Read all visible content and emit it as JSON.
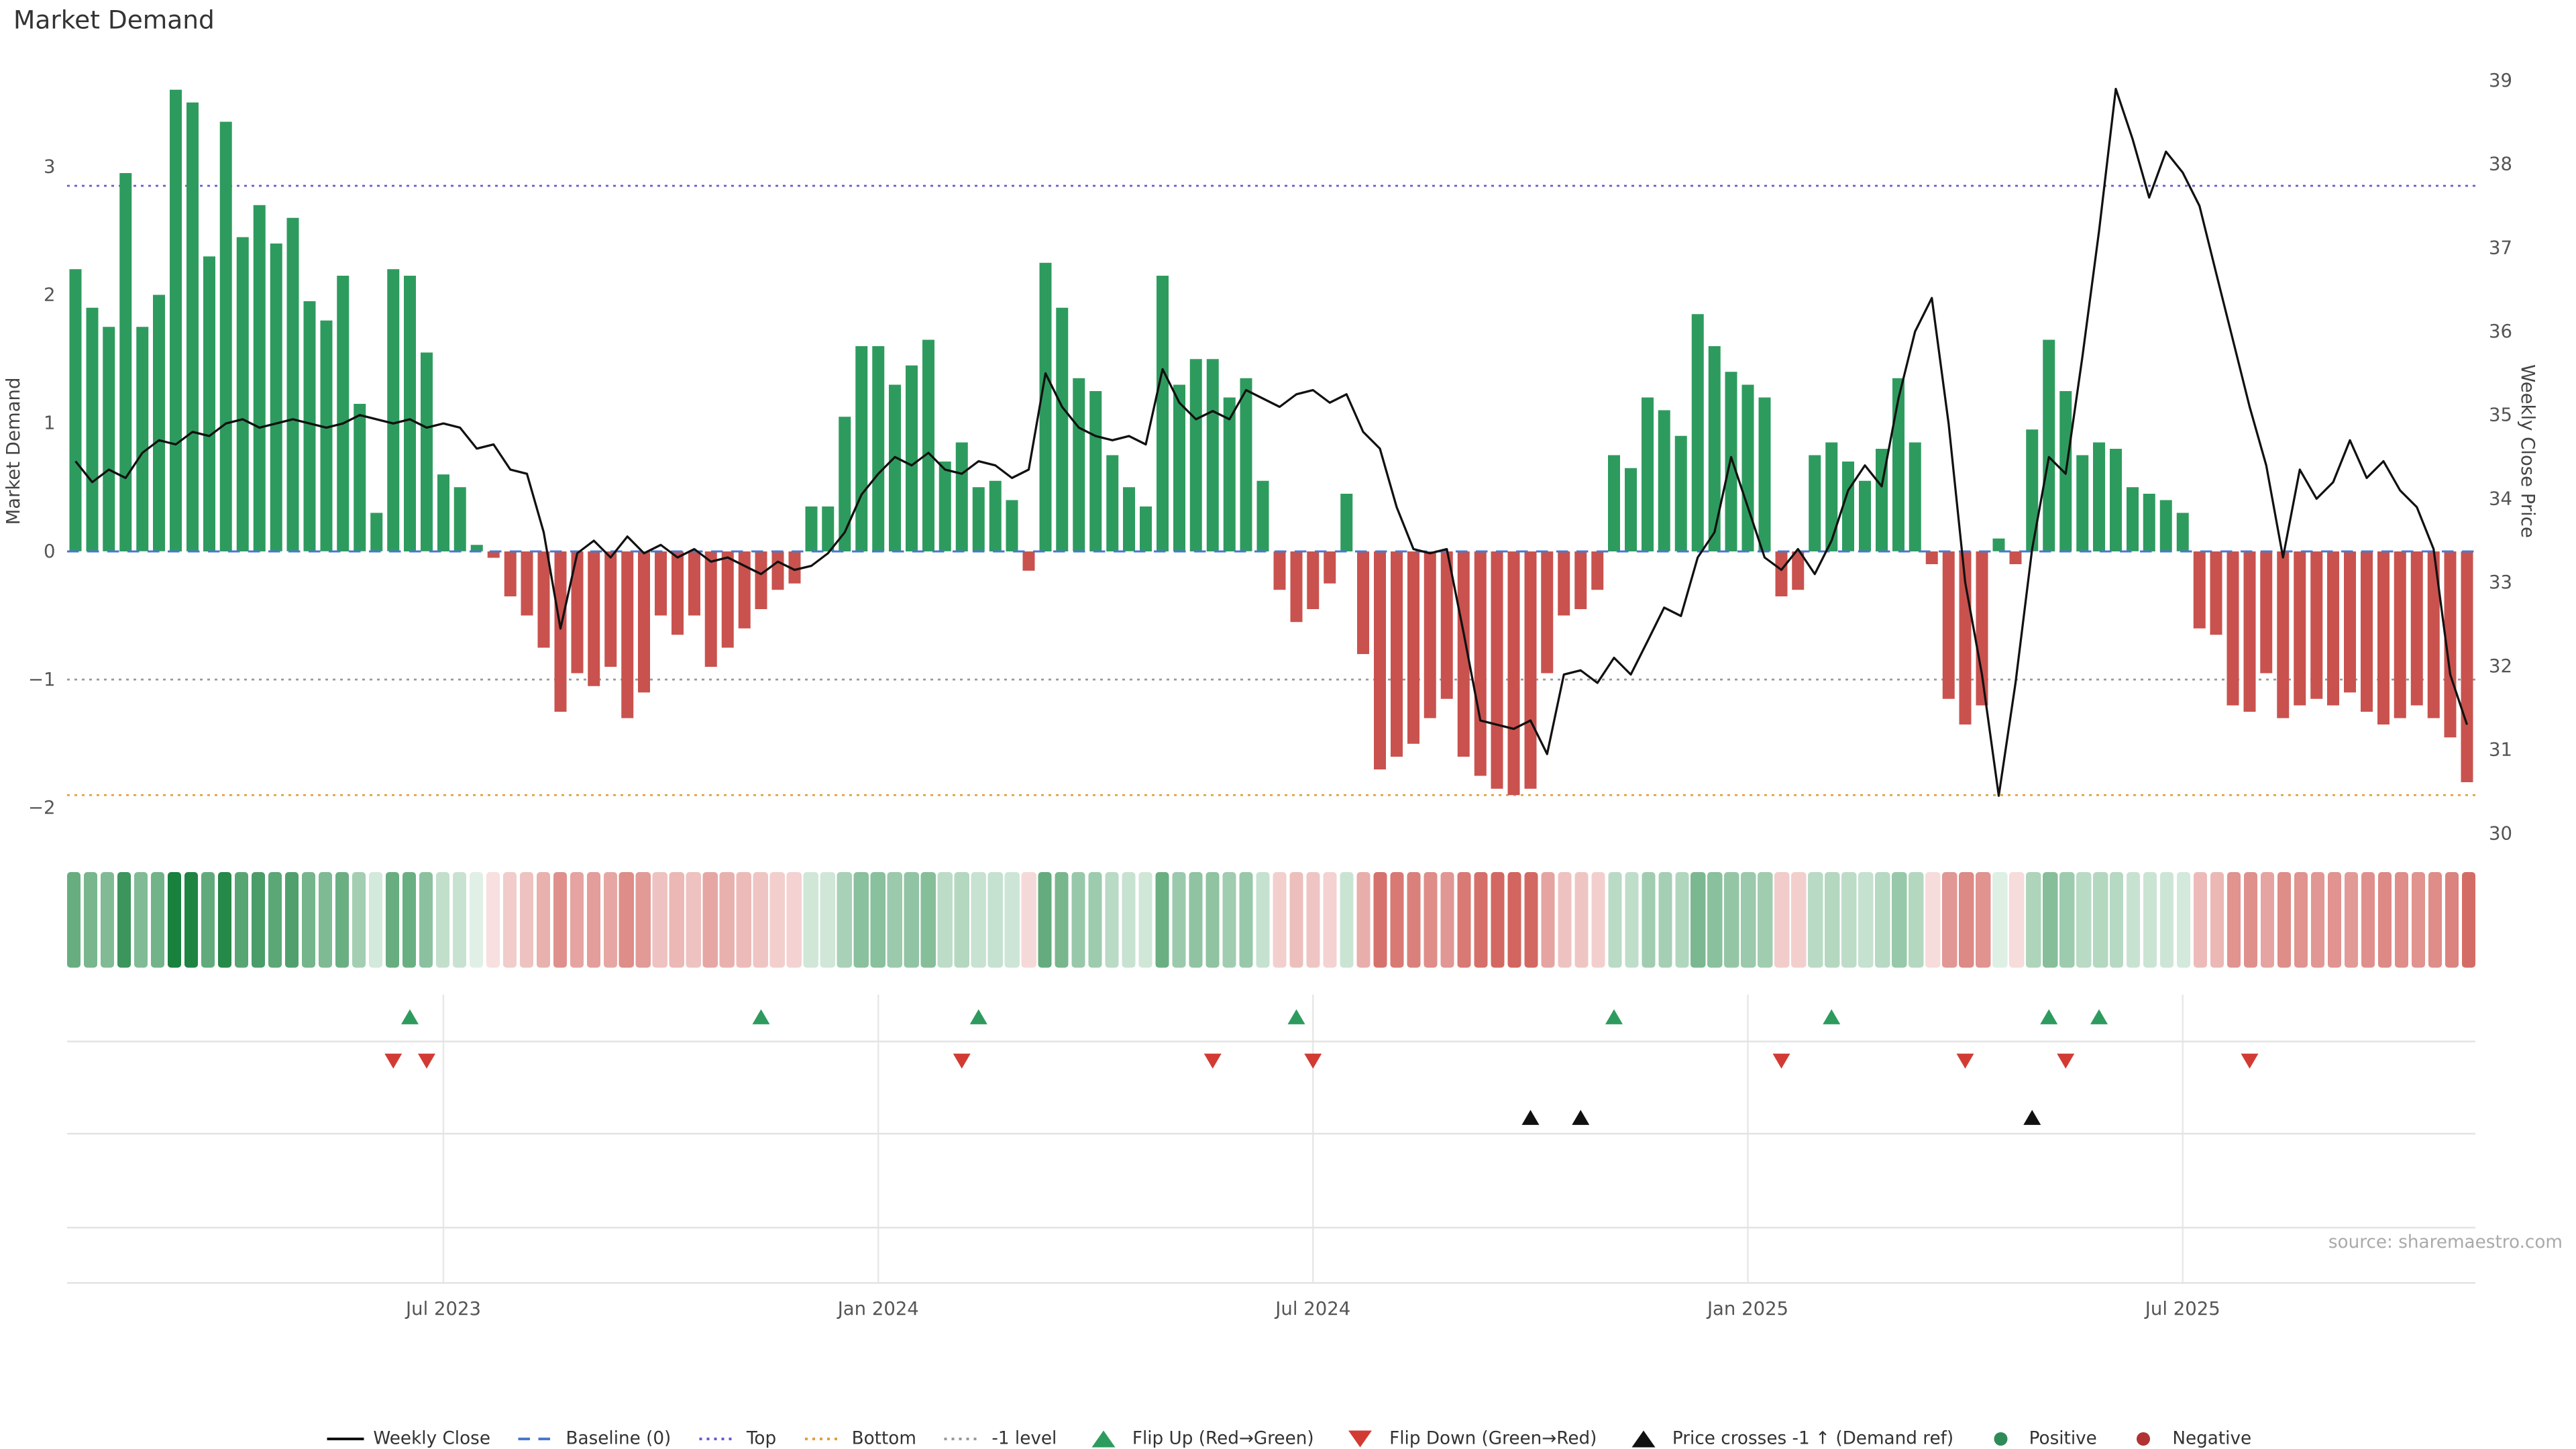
{
  "page": {
    "title": "Market Demand",
    "source_note": "source: sharemaestro.com"
  },
  "axes": {
    "left_label": "Market Demand",
    "right_label": "Weekly Close Price",
    "left_ticks": [
      "3",
      "2",
      "1",
      "0",
      "−1",
      "−2"
    ],
    "right_ticks": [
      "39",
      "38",
      "37",
      "36",
      "35",
      "34",
      "33",
      "32",
      "31",
      "30"
    ],
    "x_ticks": [
      {
        "index": 22,
        "label": "Jul 2023"
      },
      {
        "index": 48,
        "label": "Jan 2024"
      },
      {
        "index": 74,
        "label": "Jul 2024"
      },
      {
        "index": 100,
        "label": "Jan 2025"
      },
      {
        "index": 126,
        "label": "Jul 2025"
      }
    ]
  },
  "chart_data": {
    "type": "bar+line",
    "title": "Market Demand",
    "left_ylim": [
      -2.2,
      3.75
    ],
    "right_ylim": [
      30,
      39.12
    ],
    "reference_lines": [
      {
        "name": "baseline",
        "label": "Baseline (0)",
        "value": 0,
        "color": "#4878cf",
        "style": "dashed"
      },
      {
        "name": "top",
        "label": "Top",
        "value": 2.85,
        "color": "#6a5acd",
        "style": "dotted"
      },
      {
        "name": "bottom",
        "label": "Bottom",
        "value": -1.9,
        "color": "#e0a03c",
        "style": "dotted"
      },
      {
        "name": "minus-one",
        "label": "-1 level",
        "value": -1,
        "color": "#999999",
        "style": "dotted"
      }
    ],
    "series": [
      {
        "name": "Market Demand",
        "type": "bar",
        "axis": "left",
        "values": [
          2.2,
          1.9,
          1.75,
          2.95,
          1.75,
          2.0,
          3.6,
          3.5,
          2.3,
          3.35,
          2.45,
          2.7,
          2.4,
          2.6,
          1.95,
          1.8,
          2.15,
          1.15,
          0.3,
          2.2,
          2.15,
          1.55,
          0.6,
          0.5,
          0.05,
          -0.05,
          -0.35,
          -0.5,
          -0.75,
          -1.25,
          -0.95,
          -1.05,
          -0.9,
          -1.3,
          -1.1,
          -0.5,
          -0.65,
          -0.5,
          -0.9,
          -0.75,
          -0.6,
          -0.45,
          -0.3,
          -0.25,
          0.35,
          0.35,
          1.05,
          1.6,
          1.6,
          1.3,
          1.45,
          1.65,
          0.7,
          0.85,
          0.5,
          0.55,
          0.4,
          -0.15,
          2.25,
          1.9,
          1.35,
          1.25,
          0.75,
          0.5,
          0.35,
          2.15,
          1.3,
          1.5,
          1.5,
          1.2,
          1.35,
          0.55,
          -0.3,
          -0.55,
          -0.45,
          -0.25,
          0.45,
          -0.8,
          -1.7,
          -1.6,
          -1.5,
          -1.3,
          -1.15,
          -1.6,
          -1.75,
          -1.85,
          -1.9,
          -1.85,
          -0.95,
          -0.5,
          -0.45,
          -0.3,
          0.75,
          0.65,
          1.2,
          1.1,
          0.9,
          1.85,
          1.6,
          1.4,
          1.3,
          1.2,
          -0.35,
          -0.3,
          0.75,
          0.85,
          0.7,
          0.55,
          0.8,
          1.35,
          0.85,
          -0.1,
          -1.15,
          -1.35,
          -1.2,
          0.1,
          -0.1,
          0.95,
          1.65,
          1.25,
          0.75,
          0.85,
          0.8,
          0.5,
          0.45,
          0.4,
          0.3,
          -0.6,
          -0.65,
          -1.2,
          -1.25,
          -0.95,
          -1.3,
          -1.2,
          -1.15,
          -1.2,
          -1.1,
          -1.25,
          -1.35,
          -1.3,
          -1.2,
          -1.3,
          -1.45,
          -1.8
        ]
      },
      {
        "name": "Weekly Close",
        "type": "line",
        "axis": "right",
        "values": [
          34.45,
          34.2,
          34.35,
          34.25,
          34.55,
          34.7,
          34.65,
          34.8,
          34.75,
          34.9,
          34.95,
          34.85,
          34.9,
          34.95,
          34.9,
          34.85,
          34.9,
          35.0,
          34.95,
          34.9,
          34.95,
          34.85,
          34.9,
          34.85,
          34.6,
          34.65,
          34.35,
          34.3,
          33.6,
          32.45,
          33.35,
          33.5,
          33.3,
          33.55,
          33.35,
          33.45,
          33.3,
          33.4,
          33.25,
          33.3,
          33.2,
          33.1,
          33.25,
          33.15,
          33.2,
          33.35,
          33.6,
          34.05,
          34.3,
          34.5,
          34.4,
          34.55,
          34.35,
          34.3,
          34.45,
          34.4,
          34.25,
          34.35,
          35.5,
          35.1,
          34.85,
          34.75,
          34.7,
          34.75,
          34.65,
          35.55,
          35.15,
          34.95,
          35.05,
          34.95,
          35.3,
          35.2,
          35.1,
          35.25,
          35.3,
          35.15,
          35.25,
          34.8,
          34.6,
          33.9,
          33.4,
          33.35,
          33.4,
          32.4,
          31.35,
          31.3,
          31.25,
          31.35,
          30.95,
          31.9,
          31.95,
          31.8,
          32.1,
          31.9,
          32.3,
          32.7,
          32.6,
          33.3,
          33.6,
          34.5,
          33.9,
          33.3,
          33.15,
          33.4,
          33.1,
          33.5,
          34.1,
          34.4,
          34.15,
          35.2,
          36.0,
          36.4,
          34.9,
          33.0,
          31.9,
          30.45,
          31.8,
          33.4,
          34.5,
          34.3,
          35.7,
          37.2,
          38.9,
          38.3,
          37.6,
          38.15,
          37.9,
          37.5,
          36.7,
          35.9,
          35.1,
          34.4,
          33.3,
          34.35,
          34.0,
          34.2,
          34.7,
          34.25,
          34.45,
          34.1,
          33.9,
          33.4,
          31.9,
          31.3
        ]
      }
    ],
    "flip_up_indices": [
      20,
      41,
      54,
      73,
      92,
      105,
      118,
      121
    ],
    "flip_down_indices": [
      19,
      21,
      53,
      68,
      74,
      102,
      113,
      119,
      130
    ],
    "price_cross_indices": [
      87,
      90,
      117
    ]
  },
  "heatmap": {
    "description": "Weekly demand heat strip derived from Market Demand bar values (green = positive, red = negative)"
  },
  "colors": {
    "positive_bar": "#2e9b5e",
    "negative_bar": "#c9524e",
    "price_line": "#111111",
    "flip_up": "#2e9b5e",
    "flip_down": "#d23b34",
    "price_cross": "#111111",
    "positive_dot": "#2e8b57",
    "negative_dot": "#b03232",
    "heat_pos_low": "#e4f2e9",
    "heat_pos_high": "#17813d",
    "heat_neg_low": "#f8e3e2",
    "heat_neg_high": "#d2655f",
    "lane_line": "#e3e3e3",
    "grid_line": "#e8e8e8",
    "tick_text": "#555555"
  },
  "legend": {
    "items": [
      {
        "label": "Weekly Close",
        "swatch": "line",
        "dash": "solid",
        "color": "#111111",
        "icon": "weekly-close-line-icon"
      },
      {
        "label": "Baseline (0)",
        "swatch": "line",
        "dash": "dashed",
        "color": "#4878cf",
        "icon": "baseline-line-icon"
      },
      {
        "label": "Top",
        "swatch": "line",
        "dash": "dotted",
        "color": "#6a5acd",
        "icon": "top-line-icon"
      },
      {
        "label": "Bottom",
        "swatch": "line",
        "dash": "dotted",
        "color": "#e0a03c",
        "icon": "bottom-line-icon"
      },
      {
        "label": "-1 level",
        "swatch": "line",
        "dash": "dotted",
        "color": "#999999",
        "icon": "minus-one-line-icon"
      },
      {
        "label": "Flip Up (Red→Green)",
        "swatch": "tri-up",
        "color": "#2e9b5e",
        "icon": "flip-up-icon"
      },
      {
        "label": "Flip Down (Green→Red)",
        "swatch": "tri-down",
        "color": "#d23b34",
        "icon": "flip-down-icon"
      },
      {
        "label": "Price crosses -1 ↑ (Demand ref)",
        "swatch": "tri-up",
        "color": "#111111",
        "icon": "price-cross-icon"
      },
      {
        "label": "Positive",
        "swatch": "dot",
        "color": "#2e8b57",
        "icon": "positive-dot-icon"
      },
      {
        "label": "Negative",
        "swatch": "dot",
        "color": "#b03232",
        "icon": "negative-dot-icon"
      }
    ]
  }
}
